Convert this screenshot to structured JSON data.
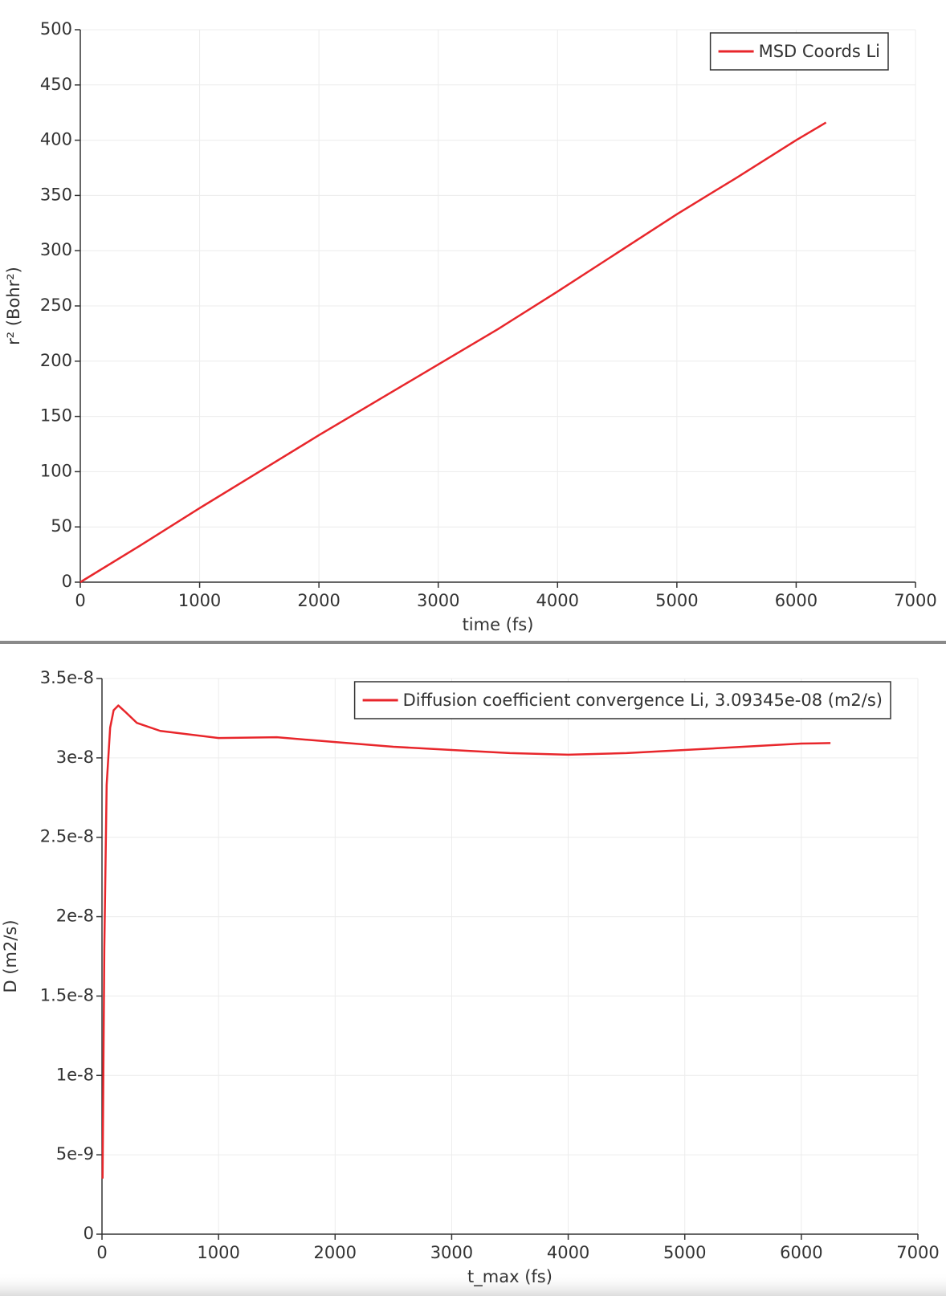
{
  "chart_data": [
    {
      "type": "line",
      "xlabel": "time (fs)",
      "ylabel": "r² (Bohr²)",
      "x": [
        0,
        500,
        1000,
        1500,
        2000,
        2500,
        3000,
        3500,
        4000,
        4500,
        5000,
        5500,
        6000,
        6250
      ],
      "series": [
        {
          "name": "MSD Coords Li",
          "color": "#e8262b",
          "values": [
            0,
            33,
            67,
            100,
            133,
            165,
            197,
            229,
            263,
            298,
            333,
            366,
            400,
            416
          ]
        }
      ],
      "xlim": [
        0,
        7000
      ],
      "xticks": [
        0,
        1000,
        2000,
        3000,
        4000,
        5000,
        6000,
        7000
      ],
      "ylim": [
        0,
        500
      ],
      "yticks": [
        0,
        50,
        100,
        150,
        200,
        250,
        300,
        350,
        400,
        450,
        500
      ],
      "grid": true,
      "legend": "upper right"
    },
    {
      "type": "line",
      "xlabel": "t_max (fs)",
      "ylabel": "D (m2/s)",
      "x": [
        5,
        20,
        40,
        70,
        100,
        140,
        200,
        300,
        500,
        1000,
        1500,
        2000,
        2500,
        3000,
        3500,
        4000,
        4500,
        5000,
        5500,
        6000,
        6250
      ],
      "series": [
        {
          "name": "Diffusion coefficient convergence Li, 3.09345e-08 (m2/s)",
          "color": "#e8262b",
          "values": [
            3.5e-09,
            1.8e-08,
            2.83e-08,
            3.19e-08,
            3.3e-08,
            3.33e-08,
            3.29e-08,
            3.22e-08,
            3.17e-08,
            3.125e-08,
            3.13e-08,
            3.1e-08,
            3.07e-08,
            3.05e-08,
            3.03e-08,
            3.02e-08,
            3.03e-08,
            3.05e-08,
            3.07e-08,
            3.09e-08,
            3.09345e-08
          ]
        }
      ],
      "xlim": [
        0,
        7000
      ],
      "xticks": [
        0,
        1000,
        2000,
        3000,
        4000,
        5000,
        6000,
        7000
      ],
      "ylim": [
        0,
        3.5e-08
      ],
      "yticks": [
        0,
        5e-09,
        1e-08,
        1.5e-08,
        2e-08,
        2.5e-08,
        3e-08,
        3.5e-08
      ],
      "grid": true,
      "legend": "upper right"
    }
  ]
}
